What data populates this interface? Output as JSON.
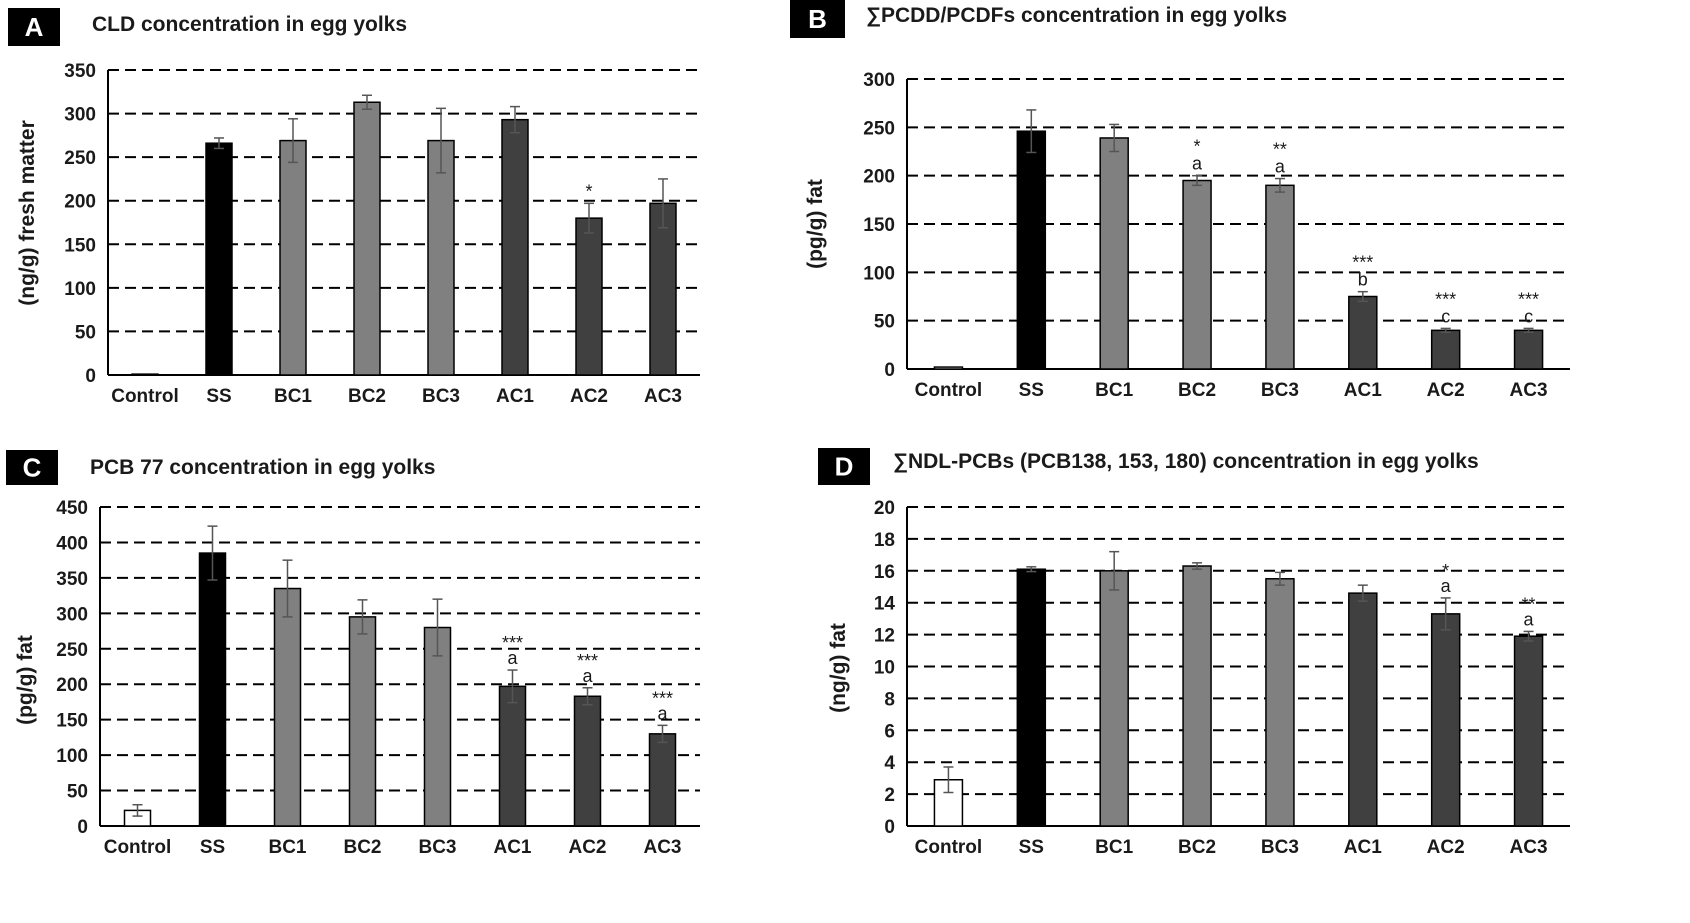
{
  "chart_data": [
    {
      "type": "bar",
      "panel": "A",
      "title": "CLD concentration in egg yolks",
      "ylabel": "(ng/g) fresh matter",
      "xlabel": "",
      "ylim": [
        0,
        350
      ],
      "yticks": [
        "0",
        "50",
        "100",
        "150",
        "200",
        "250",
        "300",
        "350"
      ],
      "grid": true,
      "categories": [
        "Control",
        "SS",
        "BC1",
        "BC2",
        "BC3",
        "AC1",
        "AC2",
        "AC3"
      ],
      "values": [
        1,
        266,
        269,
        313,
        269,
        293,
        180,
        197
      ],
      "errors": [
        0,
        6,
        25,
        8,
        37,
        15,
        17,
        28
      ],
      "colors": [
        "#ffffff",
        "#000000",
        "#808080",
        "#808080",
        "#808080",
        "#404040",
        "#404040",
        "#404040"
      ],
      "annotations": [
        {
          "category": "AC2",
          "lines": [
            "*"
          ]
        }
      ]
    },
    {
      "type": "bar",
      "panel": "B",
      "title": "∑PCDD/PCDFs concentration in egg yolks",
      "ylabel": "(pg/g) fat",
      "xlabel": "",
      "ylim": [
        0,
        300
      ],
      "yticks": [
        "0",
        "50",
        "100",
        "150",
        "200",
        "250",
        "300"
      ],
      "grid": true,
      "categories": [
        "Control",
        "SS",
        "BC1",
        "BC2",
        "BC3",
        "AC1",
        "AC2",
        "AC3"
      ],
      "values": [
        2,
        246,
        239,
        195,
        190,
        75,
        40,
        40
      ],
      "errors": [
        0,
        22,
        14,
        5,
        7,
        5,
        2,
        2
      ],
      "colors": [
        "#ffffff",
        "#000000",
        "#808080",
        "#808080",
        "#808080",
        "#404040",
        "#404040",
        "#404040"
      ],
      "annotations": [
        {
          "category": "BC2",
          "lines": [
            "*",
            "a"
          ]
        },
        {
          "category": "BC3",
          "lines": [
            "**",
            "a"
          ]
        },
        {
          "category": "AC1",
          "lines": [
            "***",
            "b"
          ]
        },
        {
          "category": "AC2",
          "lines": [
            "***",
            "c"
          ]
        },
        {
          "category": "AC3",
          "lines": [
            "***",
            "c"
          ]
        }
      ]
    },
    {
      "type": "bar",
      "panel": "C",
      "title": "PCB 77 concentration in egg yolks",
      "ylabel": "(pg/g) fat",
      "xlabel": "",
      "ylim": [
        0,
        450
      ],
      "yticks": [
        "0",
        "50",
        "100",
        "150",
        "200",
        "250",
        "300",
        "350",
        "400",
        "450"
      ],
      "grid": true,
      "categories": [
        "Control",
        "SS",
        "BC1",
        "BC2",
        "BC3",
        "AC1",
        "AC2",
        "AC3"
      ],
      "values": [
        22,
        385,
        335,
        295,
        280,
        197,
        183,
        130
      ],
      "errors": [
        8,
        38,
        40,
        24,
        40,
        23,
        12,
        12
      ],
      "colors": [
        "#ffffff",
        "#000000",
        "#808080",
        "#808080",
        "#808080",
        "#404040",
        "#404040",
        "#404040"
      ],
      "annotations": [
        {
          "category": "AC1",
          "lines": [
            "***",
            "a"
          ]
        },
        {
          "category": "AC2",
          "lines": [
            "***",
            "a"
          ]
        },
        {
          "category": "AC3",
          "lines": [
            "***",
            "a"
          ]
        }
      ]
    },
    {
      "type": "bar",
      "panel": "D",
      "title": "∑NDL-PCBs (PCB138, 153, 180) concentration in egg yolks",
      "ylabel": "(ng/g) fat",
      "xlabel": "",
      "ylim": [
        0,
        20
      ],
      "yticks": [
        "0",
        "2",
        "4",
        "6",
        "8",
        "10",
        "12",
        "14",
        "16",
        "18",
        "20"
      ],
      "grid": true,
      "categories": [
        "Control",
        "SS",
        "BC1",
        "BC2",
        "BC3",
        "AC1",
        "AC2",
        "AC3"
      ],
      "values": [
        2.9,
        16.1,
        16.0,
        16.3,
        15.5,
        14.6,
        13.3,
        11.9
      ],
      "errors": [
        0.8,
        0.15,
        1.2,
        0.2,
        0.4,
        0.5,
        1.0,
        0.3
      ],
      "colors": [
        "#ffffff",
        "#000000",
        "#808080",
        "#808080",
        "#808080",
        "#404040",
        "#404040",
        "#404040"
      ],
      "annotations": [
        {
          "category": "AC2",
          "lines": [
            "*",
            "a"
          ]
        },
        {
          "category": "AC3",
          "lines": [
            "**",
            "a"
          ]
        }
      ]
    }
  ]
}
